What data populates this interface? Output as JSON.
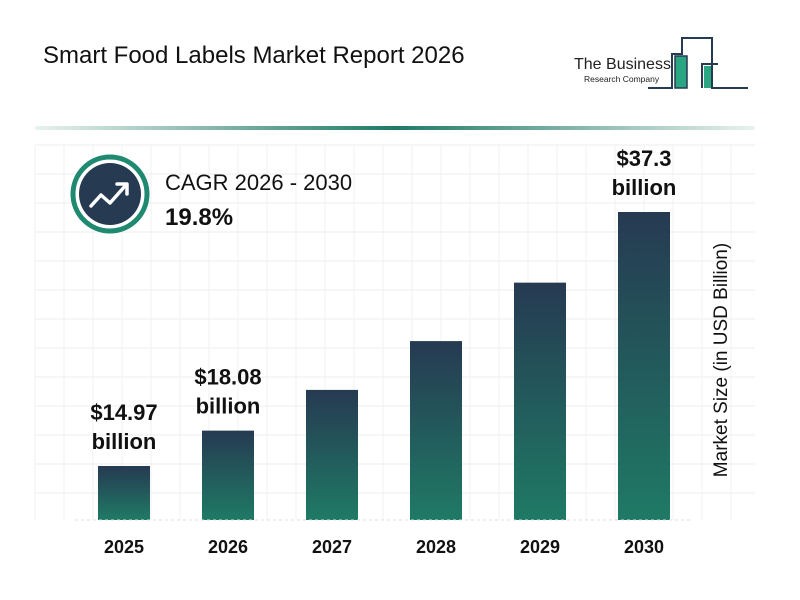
{
  "title": "Smart Food Labels Market Report 2026",
  "logo": {
    "line1": "The Business",
    "line2": "Research Company"
  },
  "cagr": {
    "label": "CAGR 2026 - 2030",
    "value": "19.8%",
    "icon": "trending-up-icon"
  },
  "colors": {
    "bar_top": "#263a52",
    "bar_bottom": "#1f7a65",
    "accent": "#1f8a70"
  },
  "chart_data": {
    "type": "bar",
    "title": "",
    "xlabel": "",
    "ylabel": "Market Size (in USD Billion)",
    "categories": [
      "2025",
      "2026",
      "2027",
      "2028",
      "2029",
      "2030"
    ],
    "values": [
      14.97,
      18.08,
      21.66,
      25.95,
      31.09,
      37.3
    ],
    "data_labels": [
      [
        "$14.97",
        "billion"
      ],
      [
        "$18.08",
        "billion"
      ],
      null,
      null,
      null,
      [
        "$37.3",
        "billion"
      ]
    ],
    "grid": true
  }
}
